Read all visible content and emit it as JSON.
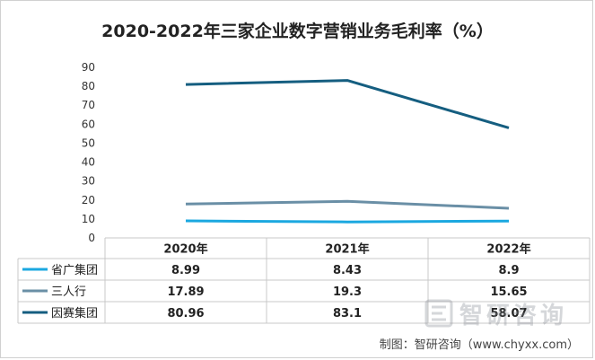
{
  "chart_data": {
    "type": "line",
    "title": "2020-2022年三家企业数字营销业务毛利率（%）",
    "categories": [
      "2020年",
      "2021年",
      "2022年"
    ],
    "series": [
      {
        "name": "省广集团",
        "values": [
          8.99,
          8.43,
          8.9
        ],
        "value_labels": [
          "8.99",
          "8.43",
          "8.9"
        ],
        "color": "#1ba8e0"
      },
      {
        "name": "三人行",
        "values": [
          17.89,
          19.3,
          15.65
        ],
        "value_labels": [
          "17.89",
          "19.3",
          "15.65"
        ],
        "color": "#6a8fa6"
      },
      {
        "name": "因赛集团",
        "values": [
          80.96,
          83.1,
          58.07
        ],
        "value_labels": [
          "80.96",
          "83.1",
          "58.07"
        ],
        "color": "#155e80"
      }
    ],
    "ylim": [
      0,
      90
    ],
    "yticks": [
      "0",
      "10",
      "20",
      "30",
      "40",
      "50",
      "60",
      "70",
      "80",
      "90"
    ],
    "grid": false,
    "legend": "data-table"
  },
  "watermark": {
    "text": "智研咨询",
    "icon": "chyxx-logo-icon"
  },
  "source": "制图：智研咨询（www.chyxx.com）"
}
